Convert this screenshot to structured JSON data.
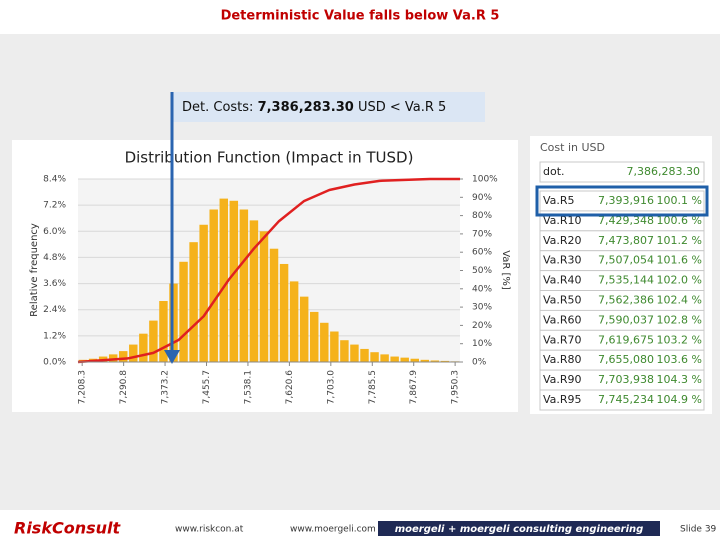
{
  "slide": {
    "title": "Deterministic Value falls below Va.R 5",
    "callout": {
      "label": "Det. Costs:",
      "value": "7,386,283.30",
      "text": "USD < Va.R 5"
    },
    "footer": {
      "logo": "RiskConsult",
      "site1": "www.riskcon.at",
      "site2": "www.moergeli.com",
      "banner": "moergeli + moergeli consulting engineering",
      "slide": "Slide 39"
    }
  },
  "chart_data": [
    {
      "type": "histogram",
      "title": "Distribution Function (Impact in TUSD)",
      "ylabel": "Relative frequency",
      "color": "#f5b21b",
      "bins": [
        7200,
        7220,
        7240,
        7260,
        7280,
        7300,
        7320,
        7340,
        7360,
        7380,
        7400,
        7420,
        7440,
        7460,
        7480,
        7500,
        7520,
        7540,
        7560,
        7580,
        7600,
        7620,
        7640,
        7660,
        7680,
        7700,
        7720,
        7740,
        7760,
        7780,
        7800,
        7820,
        7840,
        7860,
        7880,
        7900,
        7920,
        7940,
        7960
      ],
      "values": [
        0.1,
        0.15,
        0.25,
        0.35,
        0.5,
        0.8,
        1.3,
        1.9,
        2.8,
        3.6,
        4.6,
        5.5,
        6.3,
        7.0,
        7.5,
        7.4,
        7.0,
        6.5,
        6.0,
        5.2,
        4.5,
        3.7,
        3.0,
        2.3,
        1.8,
        1.4,
        1.0,
        0.8,
        0.6,
        0.45,
        0.35,
        0.25,
        0.2,
        0.15,
        0.1,
        0.07,
        0.05,
        0.03
      ],
      "xlim": [
        7200,
        7960
      ],
      "xticks": [
        {
          "value": 7208.3,
          "label": "7,208.3"
        },
        {
          "value": 7290.8,
          "label": "7,290.8"
        },
        {
          "value": 7373.2,
          "label": "7,373.2"
        },
        {
          "value": 7455.7,
          "label": "7,455.7"
        },
        {
          "value": 7538.1,
          "label": "7,538.1"
        },
        {
          "value": 7620.6,
          "label": "7,620.6"
        },
        {
          "value": 7703.0,
          "label": "7,703.0"
        },
        {
          "value": 7785.5,
          "label": "7,785.5"
        },
        {
          "value": 7867.9,
          "label": "7,867.9"
        },
        {
          "value": 7950.3,
          "label": "7,950.3"
        }
      ],
      "ylim": [
        0,
        8.4
      ],
      "yticks": [
        {
          "value": 0,
          "label": "0.0%"
        },
        {
          "value": 1.2,
          "label": "1.2%"
        },
        {
          "value": 2.4,
          "label": "2.4%"
        },
        {
          "value": 3.6,
          "label": "3.6%"
        },
        {
          "value": 4.8,
          "label": "4.8%"
        },
        {
          "value": 6.0,
          "label": "6.0%"
        },
        {
          "value": 7.2,
          "label": "7.2%"
        },
        {
          "value": 8.4,
          "label": "8.4%"
        }
      ],
      "grid": true
    },
    {
      "type": "line",
      "color": "#e02020",
      "axis": "y2",
      "y2label": "VaR [%]",
      "x": [
        7200,
        7300,
        7350,
        7400,
        7450,
        7500,
        7550,
        7600,
        7650,
        7700,
        7750,
        7800,
        7900,
        7960
      ],
      "values": [
        0,
        2,
        5,
        12,
        25,
        45,
        62,
        77,
        88,
        94,
        97,
        99,
        100,
        100
      ],
      "y2lim": [
        0,
        100
      ],
      "y2ticks": [
        {
          "value": 0,
          "label": "0%"
        },
        {
          "value": 10,
          "label": "10%"
        },
        {
          "value": 20,
          "label": "20%"
        },
        {
          "value": 30,
          "label": "30%"
        },
        {
          "value": 40,
          "label": "40%"
        },
        {
          "value": 50,
          "label": "50%"
        },
        {
          "value": 60,
          "label": "60%"
        },
        {
          "value": 70,
          "label": "70%"
        },
        {
          "value": 80,
          "label": "80%"
        },
        {
          "value": 90,
          "label": "90%"
        },
        {
          "value": 100,
          "label": "100%"
        }
      ]
    }
  ],
  "table": {
    "title": "Cost in USD",
    "rows": [
      [
        "dot.",
        "7,386,283.30"
      ],
      [
        "Va.R5",
        "7,393,916",
        "100.1 %"
      ],
      [
        "Va.R10",
        "7,429,348",
        "100.6 %"
      ],
      [
        "Va.R20",
        "7,473,807",
        "101.2 %"
      ],
      [
        "Va.R30",
        "7,507,054",
        "101.6 %"
      ],
      [
        "Va.R40",
        "7,535,144",
        "102.0 %"
      ],
      [
        "Va.R50",
        "7,562,386",
        "102.4 %"
      ],
      [
        "Va.R60",
        "7,590,037",
        "102.8 %"
      ],
      [
        "Va.R70",
        "7,619,675",
        "103.2 %"
      ],
      [
        "Va.R80",
        "7,655,080",
        "103.6 %"
      ],
      [
        "Va.R90",
        "7,703,938",
        "104.3 %"
      ],
      [
        "Va.R95",
        "7,745,234",
        "104.9 %"
      ]
    ]
  }
}
